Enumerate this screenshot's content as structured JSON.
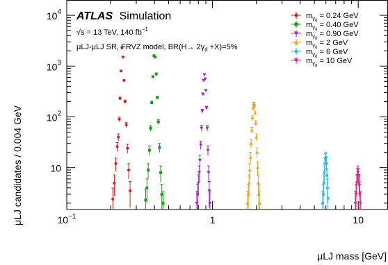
{
  "chart_data": {
    "type": "scatter",
    "title": "",
    "xlabel": "μLJ mass [GeV]",
    "ylabel": "μLJ candidates / 0.004 GeV",
    "xscale": "log",
    "yscale": "log",
    "xlim": [
      0.1,
      16
    ],
    "ylim": [
      1.5,
      20000
    ],
    "x_ticks": [
      {
        "value": 0.1,
        "label": "10",
        "sup": "−1"
      },
      {
        "value": 1,
        "label": "1",
        "sup": ""
      },
      {
        "value": 10,
        "label": "10",
        "sup": ""
      }
    ],
    "y_ticks": [
      {
        "value": 10,
        "label": "10",
        "sup": ""
      },
      {
        "value": 100,
        "label": "10",
        "sup": "2"
      },
      {
        "value": 1000,
        "label": "10",
        "sup": "3"
      },
      {
        "value": 10000,
        "label": "10",
        "sup": "4"
      }
    ],
    "annotations": {
      "experiment": "ATLAS",
      "label": "Simulation",
      "energy_line": "√s = 13 TeV, 140 fb",
      "energy_sup": "−1",
      "model_line": "μLJ-μLJ SR, FRVZ model, BR(H→ 2γ",
      "model_sub": "d",
      "model_tail": " +X)=5%"
    },
    "legend_position": "top-right",
    "series": [
      {
        "name": "mγd = 0.24 GeV",
        "prefix": "m",
        "sub": "γ",
        "subsub": "d",
        "value_text": " = 0.24 GeV",
        "color": "#e31a1c",
        "marker": "circle",
        "points": [
          [
            0.207,
            2.4
          ],
          [
            0.212,
            5
          ],
          [
            0.217,
            12
          ],
          [
            0.222,
            26
          ],
          [
            0.226,
            40
          ],
          [
            0.229,
            90
          ],
          [
            0.232,
            230
          ],
          [
            0.236,
            800
          ],
          [
            0.239,
            2300
          ],
          [
            0.243,
            1500
          ],
          [
            0.247,
            520
          ],
          [
            0.251,
            200
          ],
          [
            0.256,
            70
          ],
          [
            0.261,
            24
          ],
          [
            0.266,
            9
          ],
          [
            0.272,
            3.5
          ]
        ]
      },
      {
        "name": "mγd = 0.40 GeV",
        "prefix": "m",
        "sub": "γ",
        "subsub": "d",
        "value_text": " = 0.40 GeV",
        "color": "#1a9a1a",
        "marker": "square",
        "points": [
          [
            0.348,
            2.3
          ],
          [
            0.355,
            4
          ],
          [
            0.362,
            9
          ],
          [
            0.369,
            22
          ],
          [
            0.376,
            60
          ],
          [
            0.383,
            190
          ],
          [
            0.39,
            620
          ],
          [
            0.397,
            1600
          ],
          [
            0.404,
            1500
          ],
          [
            0.411,
            700
          ],
          [
            0.418,
            240
          ],
          [
            0.425,
            80
          ],
          [
            0.433,
            25
          ],
          [
            0.441,
            8
          ],
          [
            0.449,
            3
          ],
          [
            0.458,
            2
          ]
        ]
      },
      {
        "name": "mγd = 0.90 GeV",
        "prefix": "m",
        "sub": "γ",
        "subsub": "d",
        "value_text": " = 0.90 GeV",
        "color": "#a020d8",
        "marker": "triangle-down",
        "points": [
          [
            0.78,
            2
          ],
          [
            0.79,
            3
          ],
          [
            0.8,
            5
          ],
          [
            0.81,
            8
          ],
          [
            0.82,
            14
          ],
          [
            0.83,
            28
          ],
          [
            0.84,
            60
          ],
          [
            0.85,
            130
          ],
          [
            0.86,
            280
          ],
          [
            0.87,
            520
          ],
          [
            0.88,
            680
          ],
          [
            0.89,
            560
          ],
          [
            0.9,
            330
          ],
          [
            0.91,
            150
          ],
          [
            0.92,
            60
          ],
          [
            0.93,
            22
          ],
          [
            0.94,
            8
          ],
          [
            0.95,
            3.5
          ],
          [
            0.96,
            2
          ]
        ]
      },
      {
        "name": "mγd = 2 GeV",
        "prefix": "m",
        "sub": "γ",
        "subsub": "d",
        "value_text": " = 2 GeV",
        "color": "#f5a000",
        "marker": "triangle-up",
        "points": [
          [
            1.74,
            2
          ],
          [
            1.76,
            3
          ],
          [
            1.78,
            5
          ],
          [
            1.8,
            9
          ],
          [
            1.82,
            16
          ],
          [
            1.84,
            30
          ],
          [
            1.86,
            55
          ],
          [
            1.88,
            95
          ],
          [
            1.9,
            150
          ],
          [
            1.92,
            180
          ],
          [
            1.94,
            165
          ],
          [
            1.96,
            120
          ],
          [
            1.98,
            75
          ],
          [
            2.0,
            40
          ],
          [
            2.02,
            20
          ],
          [
            2.04,
            10
          ],
          [
            2.06,
            5
          ],
          [
            2.08,
            3
          ],
          [
            2.1,
            2
          ]
        ]
      },
      {
        "name": "mγd = 6 GeV",
        "prefix": "m",
        "sub": "γ",
        "subsub": "d",
        "value_text": " = 6 GeV",
        "color": "#20c0f0",
        "marker": "circle",
        "points": [
          [
            5.7,
            2
          ],
          [
            5.75,
            3
          ],
          [
            5.8,
            5
          ],
          [
            5.85,
            8
          ],
          [
            5.9,
            12
          ],
          [
            5.95,
            15
          ],
          [
            6.0,
            16
          ],
          [
            6.05,
            12
          ],
          [
            6.1,
            7
          ],
          [
            6.15,
            4
          ],
          [
            6.2,
            2.5
          ]
        ]
      },
      {
        "name": "mγd = 10 GeV",
        "prefix": "m",
        "sub": "γ",
        "subsub": "d",
        "value_text": " = 10 GeV",
        "color": "#e8208a",
        "marker": "triangle-down",
        "points": [
          [
            9.55,
            2
          ],
          [
            9.65,
            3
          ],
          [
            9.75,
            5
          ],
          [
            9.85,
            7
          ],
          [
            9.95,
            8
          ],
          [
            10.05,
            7
          ],
          [
            10.15,
            5
          ],
          [
            10.25,
            3
          ],
          [
            10.35,
            2
          ]
        ]
      }
    ]
  }
}
